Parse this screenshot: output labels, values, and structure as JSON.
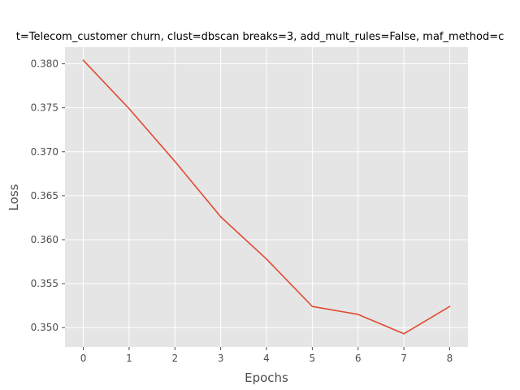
{
  "chart_data": {
    "type": "line",
    "title": "t=Telecom_customer churn, clust=dbscan breaks=3, add_mult_rules=False, maf_method=c",
    "xlabel": "Epochs",
    "ylabel": "Loss",
    "x": [
      0,
      1,
      2,
      3,
      4,
      5,
      6,
      7,
      8
    ],
    "series": [
      {
        "values": [
          0.3804,
          0.3749,
          0.3689,
          0.3626,
          0.3578,
          0.3524,
          0.3515,
          0.3493,
          0.3524
        ]
      }
    ],
    "xlim": [
      -0.4,
      8.4
    ],
    "ylim": [
      0.3478,
      0.3819
    ],
    "x_ticks": [
      0,
      1,
      2,
      3,
      4,
      5,
      6,
      7,
      8
    ],
    "y_ticks": [
      0.35,
      0.355,
      0.36,
      0.365,
      0.37,
      0.375,
      0.38
    ],
    "y_tick_labels": [
      "0.350",
      "0.355",
      "0.360",
      "0.365",
      "0.370",
      "0.375",
      "0.380"
    ],
    "grid": true,
    "style": "ggplot",
    "colors": {
      "plot_background": "#e5e5e5",
      "grid": "#ffffff",
      "line": "#e24a33",
      "tick_text": "#4d4d4d"
    }
  }
}
